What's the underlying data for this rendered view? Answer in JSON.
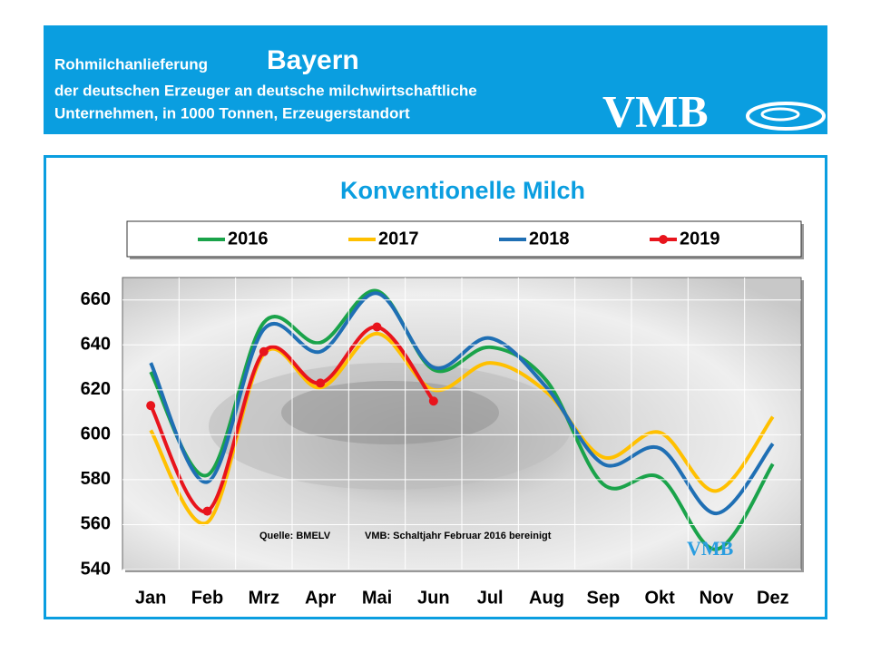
{
  "header": {
    "line1": "Rohmilchanlieferung",
    "region": "Bayern",
    "line2": "der deutschen Erzeuger an deutsche milchwirtschaftliche",
    "line3": "Unternehmen, in 1000 Tonnen, Erzeugerstandort",
    "logo": "VMB"
  },
  "chart_data": {
    "type": "line",
    "title": "Konventionelle Milch",
    "categories": [
      "Jan",
      "Feb",
      "Mrz",
      "Apr",
      "Mai",
      "Jun",
      "Jul",
      "Aug",
      "Sep",
      "Okt",
      "Nov",
      "Dez"
    ],
    "series": [
      {
        "name": "2016",
        "color": "#1aa34a",
        "values": [
          628,
          582,
          650,
          641,
          664,
          629,
          639,
          624,
          578,
          581,
          549,
          587
        ]
      },
      {
        "name": "2017",
        "color": "#ffc000",
        "values": [
          602,
          561,
          636,
          621,
          645,
          620,
          632,
          619,
          590,
          601,
          575,
          608
        ]
      },
      {
        "name": "2018",
        "color": "#1f6fb4",
        "values": [
          632,
          579,
          647,
          637,
          663,
          630,
          643,
          621,
          587,
          594,
          565,
          596
        ]
      },
      {
        "name": "2019",
        "color": "#e8141c",
        "markers": true,
        "values": [
          613,
          566,
          637,
          623,
          648,
          615,
          null,
          null,
          null,
          null,
          null,
          null
        ]
      }
    ],
    "ylim": [
      540,
      670
    ],
    "yticks": [
      540,
      560,
      580,
      600,
      620,
      640,
      660
    ],
    "grid": true,
    "annotations": [
      "Quelle:  BMELV",
      "VMB: Schaltjahr  Februar  2016  bereinigt"
    ]
  }
}
